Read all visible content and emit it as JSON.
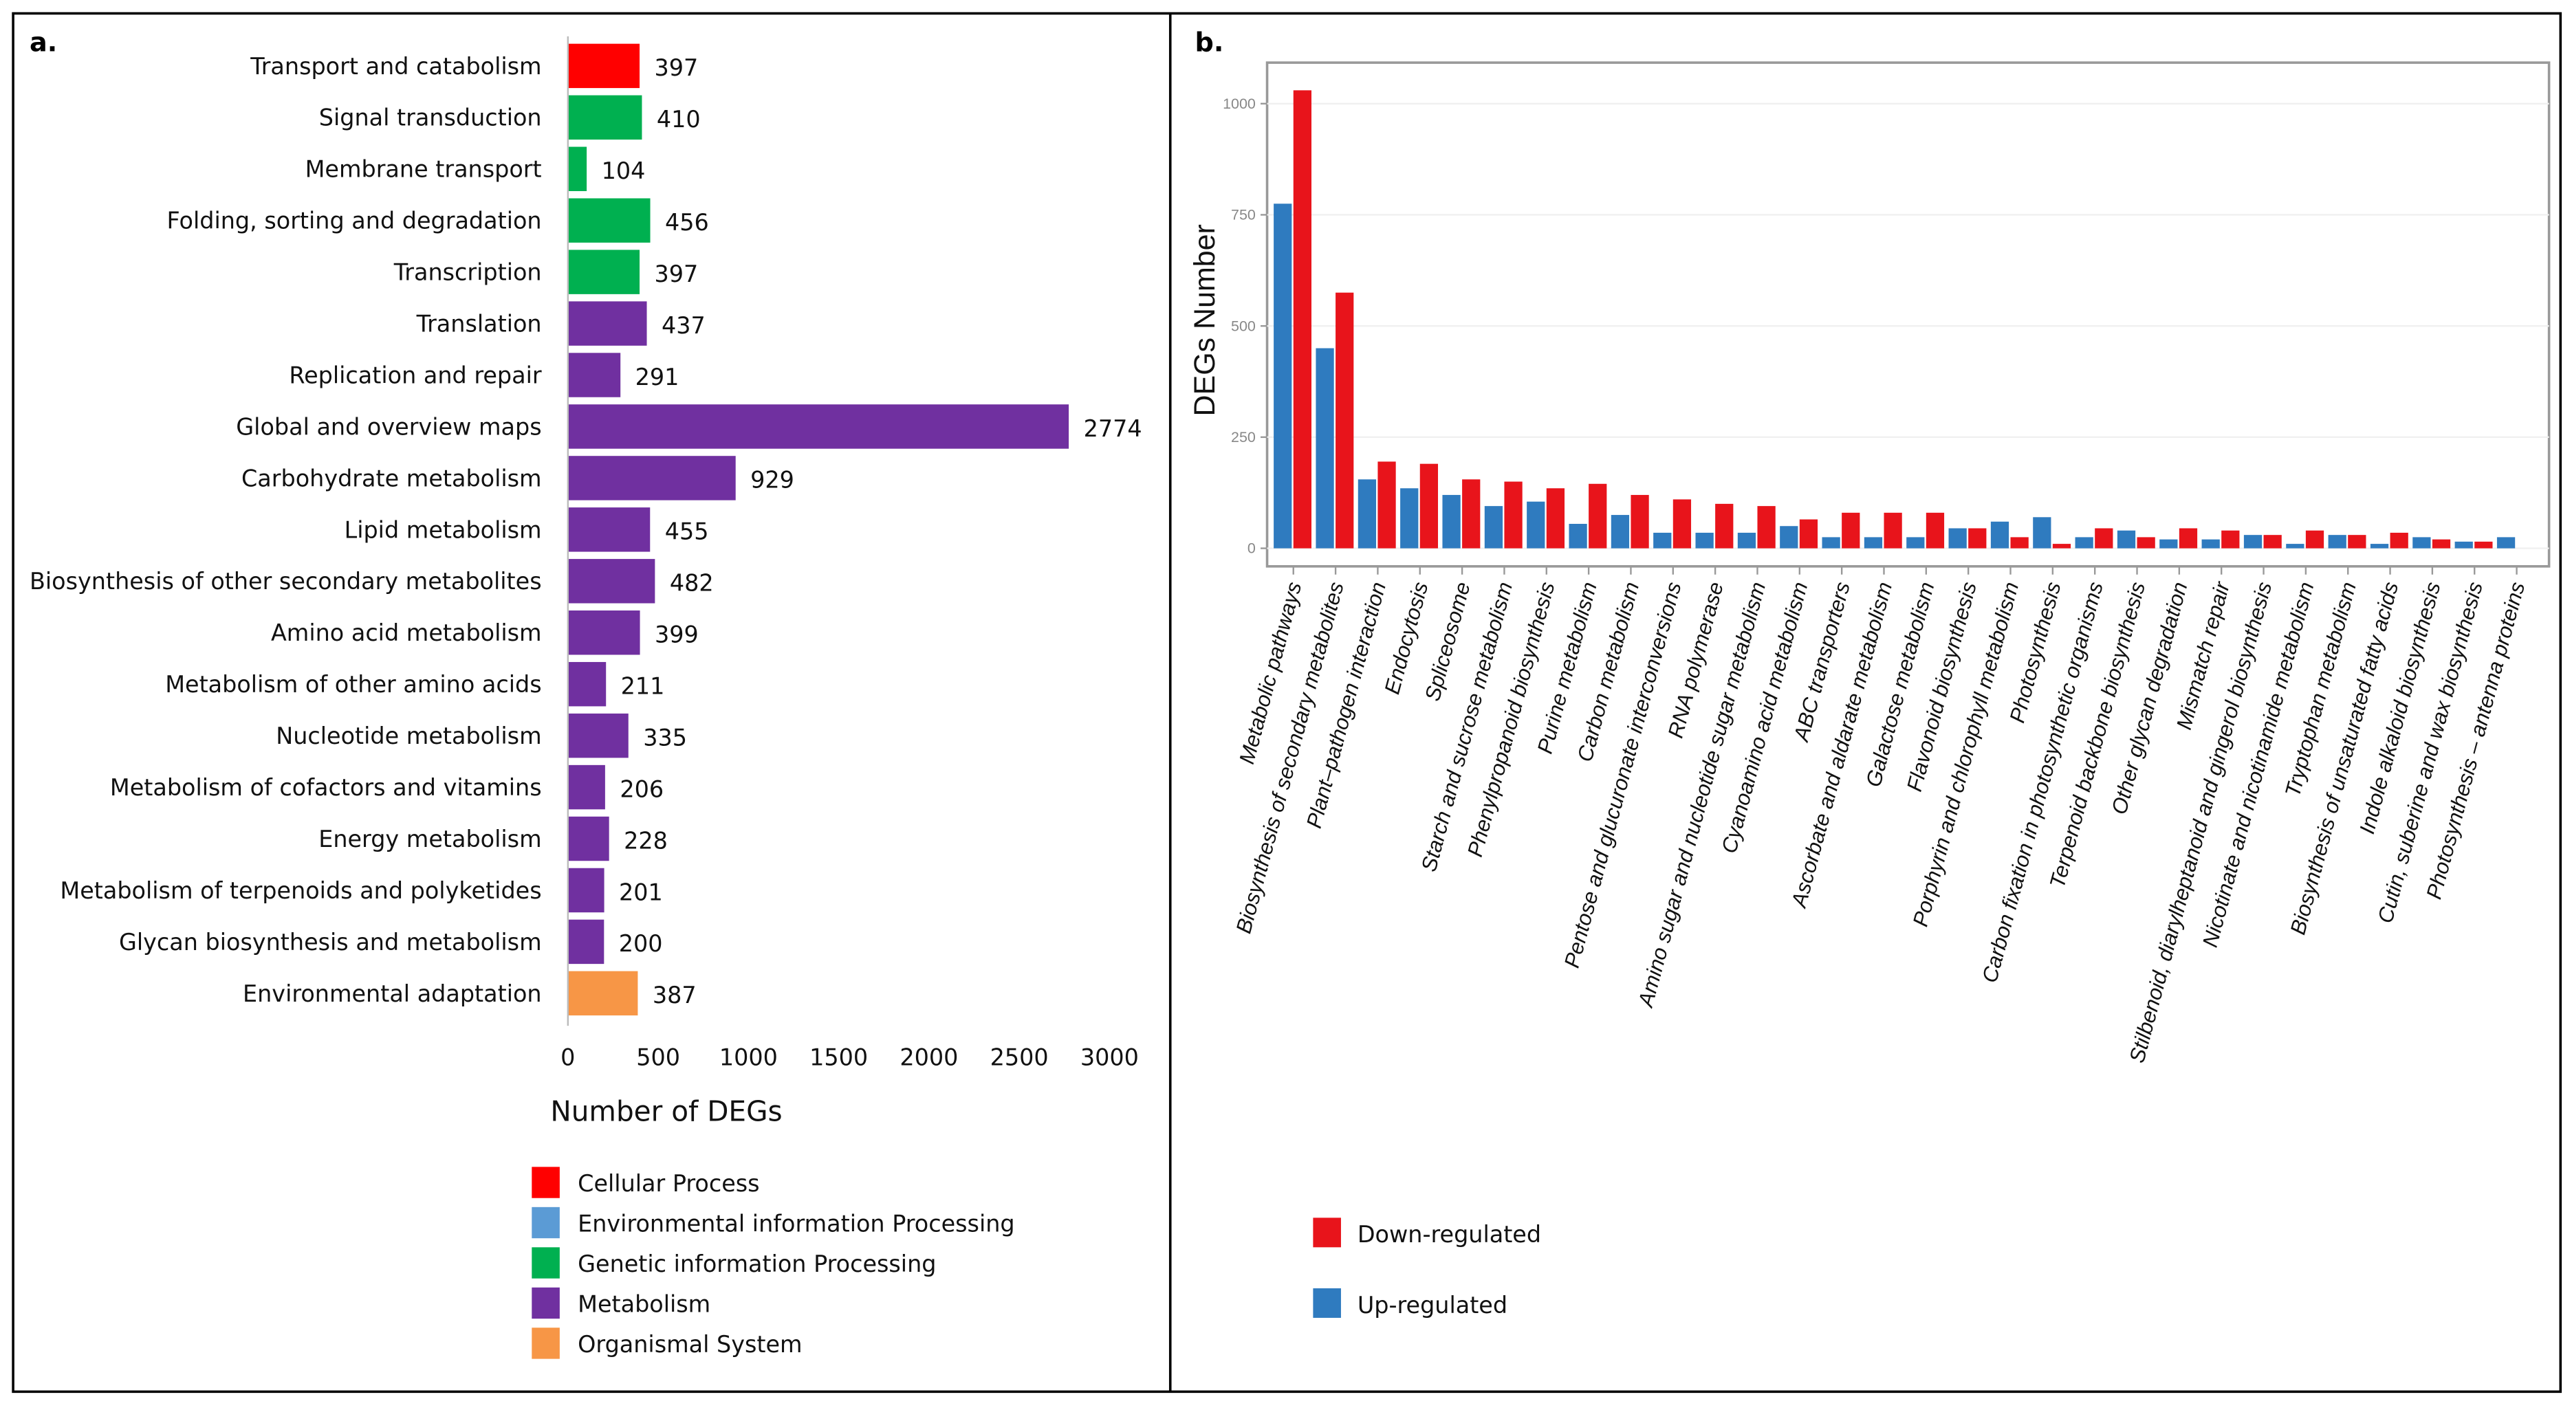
{
  "panels": {
    "a_label": "a.",
    "b_label": "b."
  },
  "colors": {
    "Cellular Process": "#ff0000",
    "Environmental information Processing": "#5b9bd5",
    "Genetic information Processing": "#00b050",
    "Metabolism": "#7030a0",
    "Organismal System": "#f79646",
    "down": "#e8141b",
    "up": "#2f7bbf"
  },
  "chart_data": [
    {
      "type": "bar",
      "orientation": "horizontal",
      "xlabel": "Number of DEGs",
      "xlim": [
        0,
        3000
      ],
      "xticks": [
        "0",
        "500",
        "1000",
        "1500",
        "2000",
        "2500",
        "3000"
      ],
      "categories": [
        "Transport and catabolism",
        "Signal transduction",
        "Membrane transport",
        "Folding, sorting and degradation",
        "Transcription",
        "Translation",
        "Replication and repair",
        "Global and overview maps",
        "Carbohydrate metabolism",
        "Lipid metabolism",
        "Biosynthesis of other secondary metabolites",
        "Amino acid metabolism",
        "Metabolism of other amino acids",
        "Nucleotide metabolism",
        "Metabolism of cofactors and vitamins",
        "Energy metabolism",
        "Metabolism of terpenoids and polyketides",
        "Glycan biosynthesis and metabolism",
        "Environmental adaptation"
      ],
      "values": [
        397,
        410,
        104,
        456,
        397,
        437,
        291,
        2774,
        929,
        455,
        482,
        399,
        211,
        335,
        206,
        228,
        201,
        200,
        387
      ],
      "groups": [
        "Cellular Process",
        "Genetic information Processing",
        "Genetic information Processing",
        "Genetic information Processing",
        "Genetic information Processing",
        "Metabolism",
        "Metabolism",
        "Metabolism",
        "Metabolism",
        "Metabolism",
        "Metabolism",
        "Metabolism",
        "Metabolism",
        "Metabolism",
        "Metabolism",
        "Metabolism",
        "Metabolism",
        "Metabolism",
        "Organismal System"
      ],
      "legend": [
        "Cellular Process",
        "Environmental information Processing",
        "Genetic information Processing",
        "Metabolism",
        "Organismal System"
      ],
      "legend_position": "bottom"
    },
    {
      "type": "bar",
      "orientation": "vertical",
      "ylabel": "DEGs Number",
      "ylim": [
        0,
        1100
      ],
      "yticks": [
        "0",
        "250",
        "500",
        "750",
        "1000"
      ],
      "grid": true,
      "categories": [
        "Metabolic pathways",
        "Biosynthesis of secondary metabolites",
        "Plant–pathogen interaction",
        "Endocytosis",
        "Spliceosome",
        "Starch and sucrose metabolism",
        "Phenylpropanoid biosynthesis",
        "Purine metabolism",
        "Carbon metabolism",
        "Pentose and glucuronate interconversions",
        "RNA polymerase",
        "Amino sugar and nucleotide sugar metabolism",
        "Cyanoamino acid metabolism",
        "ABC transporters",
        "Ascorbate and aldarate metabolism",
        "Galactose metabolism",
        "Flavonoid biosynthesis",
        "Porphyrin and chlorophyll metabolism",
        "Photosynthesis",
        "Carbon fixation in photosynthetic organisms",
        "Terpenoid backbone biosynthesis",
        "Other glycan degradation",
        "Mismatch repair",
        "Stilbenoid, diarylheptanoid and gingerol biosynthesis",
        "Nicotinate and nicotinamide metabolism",
        "Tryptophan metabolism",
        "Biosynthesis of unsaturated fatty acids",
        "Indole alkaloid biosynthesis",
        "Cutin, suberine and wax biosynthesis",
        "Photosynthesis – antenna proteins"
      ],
      "series": [
        {
          "name": "Up-regulated",
          "values": [
            775,
            450,
            155,
            135,
            120,
            95,
            105,
            55,
            75,
            35,
            35,
            35,
            50,
            25,
            25,
            25,
            45,
            60,
            70,
            25,
            40,
            20,
            20,
            30,
            10,
            30,
            10,
            25,
            15,
            25
          ]
        },
        {
          "name": "Down-regulated",
          "values": [
            1030,
            575,
            195,
            190,
            155,
            150,
            135,
            145,
            120,
            110,
            100,
            95,
            65,
            80,
            80,
            80,
            45,
            25,
            10,
            45,
            25,
            45,
            40,
            30,
            40,
            30,
            35,
            20,
            15,
            0
          ]
        }
      ],
      "legend": [
        "Down-regulated",
        "Up-regulated"
      ],
      "legend_position": "bottom-left"
    }
  ]
}
